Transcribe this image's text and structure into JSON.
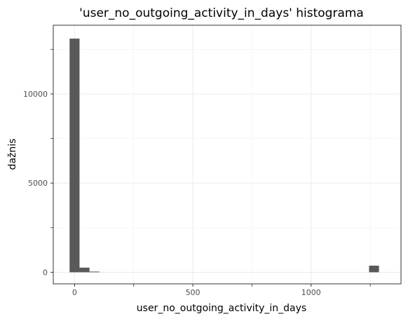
{
  "chart_data": {
    "type": "bar",
    "title": "'user_no_outgoing_activity_in_days' histograma",
    "xlabel": "user_no_outgoing_activity_in_days",
    "ylabel": "dažnis",
    "xlim": [
      -90,
      1380
    ],
    "ylim": [
      -650,
      13850
    ],
    "x_ticks": [
      0,
      500,
      1000
    ],
    "x_tick_labels": [
      "0",
      "500",
      "1000"
    ],
    "y_ticks": [
      0,
      5000,
      10000
    ],
    "y_tick_labels": [
      "0",
      "5000",
      "10000"
    ],
    "grid": true,
    "bars": [
      {
        "x0": -21,
        "x1": 21,
        "value": 13100
      },
      {
        "x0": 21,
        "x1": 63,
        "value": 260
      },
      {
        "x0": 63,
        "x1": 105,
        "value": 40
      },
      {
        "x0": 1245,
        "x1": 1287,
        "value": 370
      }
    ],
    "bar_color": "#595959"
  }
}
